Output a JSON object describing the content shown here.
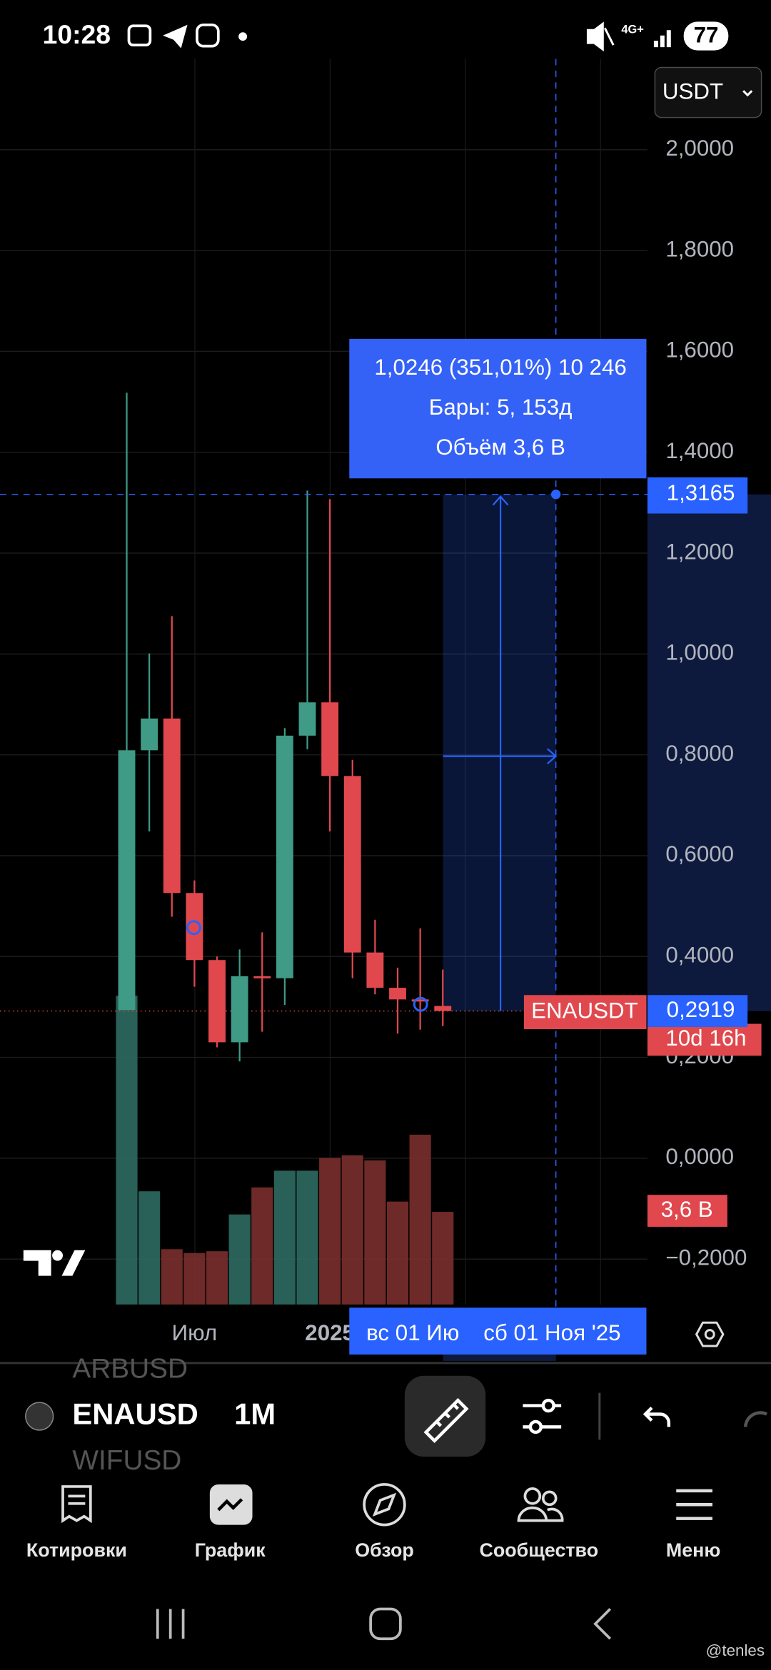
{
  "status_bar": {
    "time": "10:28",
    "network": "4G+",
    "battery": "77"
  },
  "currency": "USDT",
  "chart_data": {
    "type": "candlestick",
    "symbol": "ENAUSDT",
    "categories": [
      null,
      null,
      null,
      "Июл",
      null,
      null,
      null,
      null,
      null,
      "2025",
      null,
      null,
      null,
      null,
      null
    ],
    "series": [
      {
        "name": "ENAUSDT",
        "up_color": "#3f9a86",
        "down_color": "#e0484e",
        "open": [
          0.294,
          0.809,
          0.872,
          0.526,
          0.393,
          0.23,
          0.361,
          0.357,
          0.838,
          0.904,
          0.758,
          0.408,
          0.338,
          0.315,
          0.302
        ],
        "high": [
          1.518,
          1.001,
          1.075,
          0.551,
          0.4,
          0.414,
          0.448,
          0.853,
          1.324,
          1.307,
          0.79,
          0.473,
          0.378,
          0.456,
          0.374
        ],
        "low": [
          0.294,
          0.648,
          0.479,
          0.34,
          0.22,
          0.192,
          0.251,
          0.304,
          0.811,
          0.648,
          0.357,
          0.325,
          0.247,
          0.255,
          0.262
        ],
        "close": [
          0.809,
          0.872,
          0.526,
          0.393,
          0.23,
          0.361,
          0.357,
          0.838,
          0.904,
          0.758,
          0.408,
          0.338,
          0.315,
          0.312,
          0.2919
        ]
      }
    ],
    "volume": {
      "up_color": "#2d6a62",
      "down_color": "#7a2f2c",
      "values": [
        12.0,
        4.4,
        2.15,
        2.0,
        2.07,
        3.5,
        4.55,
        5.2,
        5.2,
        5.7,
        5.8,
        5.6,
        4.0,
        6.6,
        3.6
      ],
      "value_labels": [
        null,
        null,
        null,
        null,
        null,
        null,
        null,
        null,
        null,
        null,
        null,
        null,
        null,
        null,
        "3,6 B"
      ]
    },
    "ylim": [
      -0.29,
      2.18
    ],
    "yticks": [
      {
        "value": 2.0,
        "label": "2,0000"
      },
      {
        "value": 1.8,
        "label": "1,8000"
      },
      {
        "value": 1.6,
        "label": "1,6000"
      },
      {
        "value": 1.4,
        "label": "1,4000"
      },
      {
        "value": 1.2,
        "label": "1,2000"
      },
      {
        "value": 1.0,
        "label": "1,0000"
      },
      {
        "value": 0.8,
        "label": "0,8000"
      },
      {
        "value": 0.6,
        "label": "0,6000"
      },
      {
        "value": 0.4,
        "label": "0,4000"
      },
      {
        "value": 0.2,
        "label": "0,2000"
      },
      {
        "value": 0,
        "label": "0,0000"
      },
      {
        "value": -0.2,
        "label": "−0,2000"
      }
    ],
    "grid": true,
    "last_price": {
      "value": 0.2919,
      "label": "0,2919"
    },
    "countdown": "10d 16h",
    "crosshair": {
      "price": {
        "value": 1.3165,
        "label": "1,3165"
      },
      "date_labels": [
        "вс 01 Ию",
        "сб 01 Ноя '25"
      ]
    },
    "measure": {
      "lines": [
        "1,0246 (351,01%) 10 246",
        "Бары: 5, 153д",
        "Объём 3,6 B"
      ]
    }
  },
  "toolbar": {
    "symbols": [
      "ARBUSD",
      "ENAUSD",
      "WIFUSD"
    ],
    "interval": "1M"
  },
  "nav": {
    "items": [
      {
        "label": "Котировки"
      },
      {
        "label": "График"
      },
      {
        "label": "Обзор"
      },
      {
        "label": "Сообщество"
      },
      {
        "label": "Меню"
      }
    ]
  },
  "watermark": "@tenles"
}
